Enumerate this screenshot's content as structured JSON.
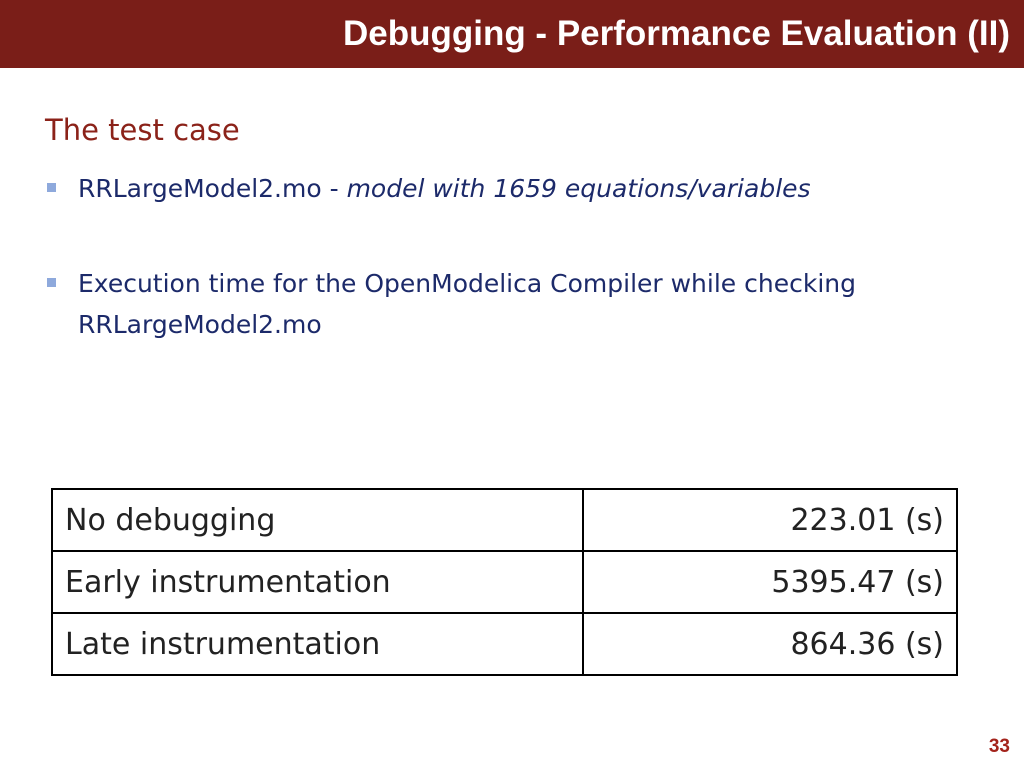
{
  "header": {
    "title": "Debugging - Performance Evaluation (II)"
  },
  "section": {
    "heading": "The test case",
    "bullets": [
      {
        "text": "RRLargeModel2.mo - ",
        "emphasis": "model with 1659 equations/variables"
      },
      {
        "text": "Execution time for the OpenModelica Compiler while checking RRLargeModel2.mo"
      }
    ]
  },
  "table": {
    "rows": [
      [
        "No debugging",
        "223.01 (s)"
      ],
      [
        "Early instrumentation",
        "5395.47 (s)"
      ],
      [
        "Late instrumentation",
        "864.36 (s)"
      ]
    ]
  },
  "footer": {
    "page_number": "33"
  }
}
